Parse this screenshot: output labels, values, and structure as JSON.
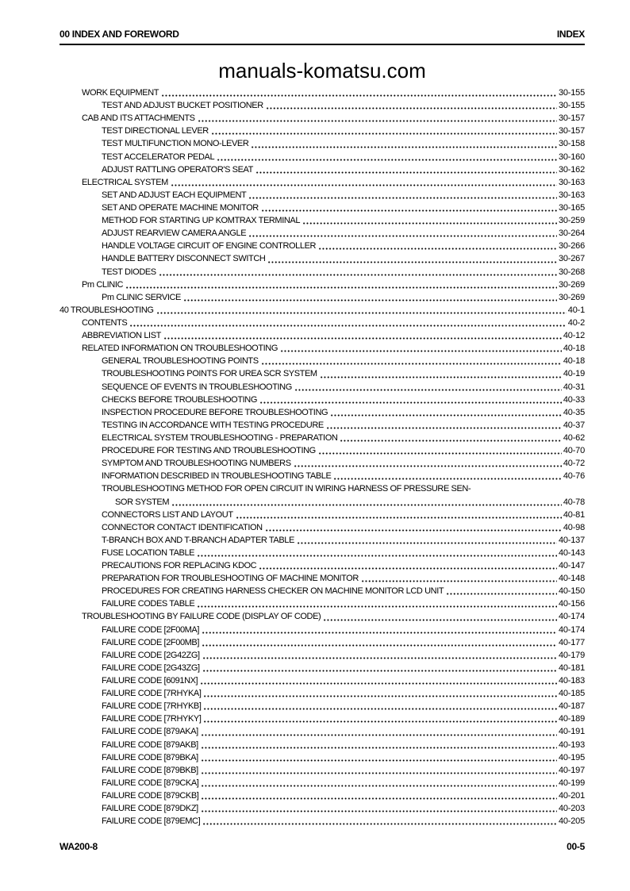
{
  "header": {
    "left": "00 INDEX AND FOREWORD",
    "right": "INDEX"
  },
  "watermark": "manuals-komatsu.com",
  "footer": {
    "left": "WA200-8",
    "right": "00-5"
  },
  "colors": {
    "text": "#000000",
    "background": "#ffffff"
  },
  "toc": {
    "entries": [
      {
        "level": 1,
        "label": "WORK EQUIPMENT",
        "page": "30-155"
      },
      {
        "level": 2,
        "label": "TEST AND ADJUST BUCKET POSITIONER",
        "page": "30-155"
      },
      {
        "level": 1,
        "label": "CAB AND ITS ATTACHMENTS",
        "page": "30-157"
      },
      {
        "level": 2,
        "label": "TEST DIRECTIONAL LEVER",
        "page": "30-157"
      },
      {
        "level": 2,
        "label": "TEST MULTIFUNCTION MONO-LEVER",
        "page": "30-158"
      },
      {
        "level": 2,
        "label": "TEST ACCELERATOR PEDAL",
        "page": "30-160"
      },
      {
        "level": 2,
        "label": "ADJUST RATTLING OPERATOR'S SEAT",
        "page": "30-162"
      },
      {
        "level": 1,
        "label": "ELECTRICAL SYSTEM",
        "page": "30-163"
      },
      {
        "level": 2,
        "label": "SET AND ADJUST EACH EQUIPMENT",
        "page": "30-163"
      },
      {
        "level": 2,
        "label": "SET AND OPERATE MACHINE MONITOR",
        "page": "30-165"
      },
      {
        "level": 2,
        "label": "METHOD FOR STARTING UP KOMTRAX TERMINAL",
        "page": "30-259"
      },
      {
        "level": 2,
        "label": "ADJUST REARVIEW CAMERA ANGLE",
        "page": "30-264"
      },
      {
        "level": 2,
        "label": "HANDLE VOLTAGE CIRCUIT OF ENGINE CONTROLLER",
        "page": "30-266"
      },
      {
        "level": 2,
        "label": "HANDLE BATTERY DISCONNECT SWITCH",
        "page": "30-267"
      },
      {
        "level": 2,
        "label": "TEST DIODES",
        "page": "30-268"
      },
      {
        "level": 1,
        "label": "Pm CLINIC",
        "page": "30-269"
      },
      {
        "level": 2,
        "label": "Pm CLINIC SERVICE",
        "page": "30-269"
      },
      {
        "level": 0,
        "label": "40 TROUBLESHOOTING",
        "page": "40-1"
      },
      {
        "level": 1,
        "label": "CONTENTS",
        "page": "40-2"
      },
      {
        "level": 1,
        "label": "ABBREVIATION LIST",
        "page": "40-12"
      },
      {
        "level": 1,
        "label": "RELATED INFORMATION ON TROUBLESHOOTING",
        "page": "40-18"
      },
      {
        "level": 2,
        "label": "GENERAL TROUBLESHOOTING POINTS",
        "page": "40-18"
      },
      {
        "level": 2,
        "label": "TROUBLESHOOTING POINTS FOR UREA SCR SYSTEM",
        "page": "40-19"
      },
      {
        "level": 2,
        "label": "SEQUENCE OF EVENTS IN TROUBLESHOOTING",
        "page": "40-31"
      },
      {
        "level": 2,
        "label": "CHECKS BEFORE TROUBLESHOOTING",
        "page": "40-33"
      },
      {
        "level": 2,
        "label": "INSPECTION PROCEDURE BEFORE TROUBLESHOOTING",
        "page": "40-35"
      },
      {
        "level": 2,
        "label": "TESTING IN ACCORDANCE WITH TESTING PROCEDURE",
        "page": "40-37"
      },
      {
        "level": 2,
        "label": "ELECTRICAL SYSTEM TROUBLESHOOTING - PREPARATION",
        "page": "40-62"
      },
      {
        "level": 2,
        "label": "PROCEDURE FOR TESTING AND TROUBLESHOOTING",
        "page": "40-70"
      },
      {
        "level": 2,
        "label": "SYMPTOM AND TROUBLESHOOTING NUMBERS",
        "page": "40-72"
      },
      {
        "level": 2,
        "label": "INFORMATION DESCRIBED IN TROUBLESHOOTING TABLE",
        "page": "40-76"
      },
      {
        "level": 2,
        "label": "TROUBLESHOOTING METHOD FOR OPEN CIRCUIT IN WIRING HARNESS OF PRESSURE SEN-",
        "continuation": "SOR SYSTEM",
        "page": "40-78"
      },
      {
        "level": 2,
        "label": "CONNECTORS LIST AND LAYOUT",
        "page": "40-81"
      },
      {
        "level": 2,
        "label": "CONNECTOR CONTACT IDENTIFICATION",
        "page": "40-98"
      },
      {
        "level": 2,
        "label": "T-BRANCH BOX AND T-BRANCH ADAPTER TABLE",
        "page": "40-137"
      },
      {
        "level": 2,
        "label": "FUSE LOCATION TABLE",
        "page": "40-143"
      },
      {
        "level": 2,
        "label": "PRECAUTIONS FOR REPLACING KDOC",
        "page": "40-147"
      },
      {
        "level": 2,
        "label": "PREPARATION FOR TROUBLESHOOTING OF MACHINE MONITOR",
        "page": "40-148"
      },
      {
        "level": 2,
        "label": "PROCEDURES FOR CREATING HARNESS CHECKER ON MACHINE MONITOR LCD UNIT",
        "page": "40-150"
      },
      {
        "level": 2,
        "label": "FAILURE CODES TABLE",
        "page": "40-156"
      },
      {
        "level": 1,
        "label": "TROUBLESHOOTING BY FAILURE CODE (DISPLAY OF CODE)",
        "page": "40-174"
      },
      {
        "level": 2,
        "label": "FAILURE CODE [2F00MA]",
        "page": "40-174"
      },
      {
        "level": 2,
        "label": "FAILURE CODE [2F00MB]",
        "page": "40-177"
      },
      {
        "level": 2,
        "label": "FAILURE CODE [2G42ZG]",
        "page": "40-179"
      },
      {
        "level": 2,
        "label": "FAILURE CODE [2G43ZG]",
        "page": "40-181"
      },
      {
        "level": 2,
        "label": "FAILURE CODE [6091NX]",
        "page": "40-183"
      },
      {
        "level": 2,
        "label": "FAILURE CODE [7RHYKA]",
        "page": "40-185"
      },
      {
        "level": 2,
        "label": "FAILURE CODE [7RHYKB]",
        "page": "40-187"
      },
      {
        "level": 2,
        "label": "FAILURE CODE [7RHYKY]",
        "page": "40-189"
      },
      {
        "level": 2,
        "label": "FAILURE CODE [879AKA]",
        "page": "40-191"
      },
      {
        "level": 2,
        "label": "FAILURE CODE [879AKB]",
        "page": "40-193"
      },
      {
        "level": 2,
        "label": "FAILURE CODE [879BKA]",
        "page": "40-195"
      },
      {
        "level": 2,
        "label": "FAILURE CODE [879BKB]",
        "page": "40-197"
      },
      {
        "level": 2,
        "label": "FAILURE CODE [879CKA]",
        "page": "40-199"
      },
      {
        "level": 2,
        "label": "FAILURE CODE [879CKB]",
        "page": "40-201"
      },
      {
        "level": 2,
        "label": "FAILURE CODE [879DKZ]",
        "page": "40-203"
      },
      {
        "level": 2,
        "label": "FAILURE CODE [879EMC]",
        "page": "40-205"
      }
    ]
  }
}
